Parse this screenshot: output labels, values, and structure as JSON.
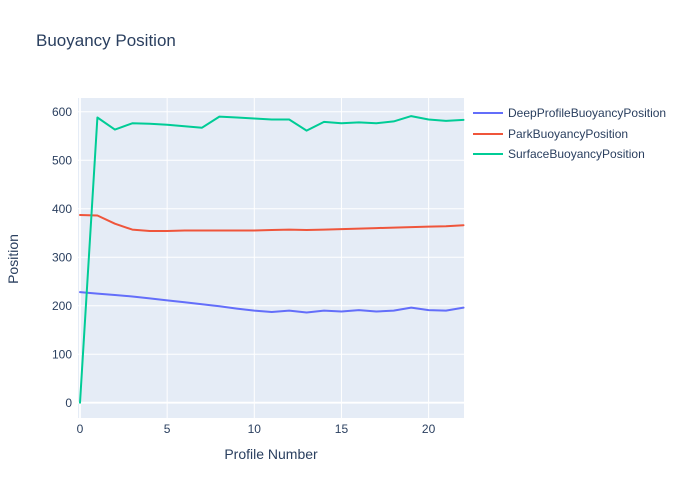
{
  "chart_data": {
    "type": "line",
    "title": "Buoyancy Position",
    "xlabel": "Profile Number",
    "ylabel": "Position",
    "x_ticks": [
      0,
      5,
      10,
      15,
      20
    ],
    "y_ticks": [
      0,
      100,
      200,
      300,
      400,
      500,
      600
    ],
    "xlim": [
      0,
      22
    ],
    "ylim": [
      -33,
      630
    ],
    "grid": true,
    "legend_position": "right",
    "x": [
      0,
      1,
      2,
      3,
      4,
      5,
      6,
      7,
      8,
      9,
      10,
      11,
      12,
      13,
      14,
      15,
      16,
      17,
      18,
      19,
      20,
      21,
      22
    ],
    "series": [
      {
        "name": "DeepProfileBuoyancyPosition",
        "color": "#636EFA",
        "values": [
          228,
          225,
          222,
          219,
          215,
          211,
          207,
          203,
          199,
          194,
          190,
          187,
          190,
          186,
          190,
          188,
          191,
          188,
          190,
          196,
          191,
          190,
          196
        ]
      },
      {
        "name": "ParkBuoyancyPosition",
        "color": "#EF553B",
        "values": [
          387,
          386,
          369,
          357,
          354,
          354,
          355,
          355,
          355,
          355,
          355,
          356,
          357,
          356,
          357,
          358,
          359,
          360,
          361,
          362,
          363,
          364,
          366
        ]
      },
      {
        "name": "SurfaceBuoyancyPosition",
        "color": "#00CC96",
        "values": [
          0,
          588,
          563,
          576,
          575,
          573,
          570,
          567,
          590,
          588,
          586,
          584,
          584,
          561,
          579,
          576,
          578,
          576,
          580,
          591,
          584,
          581,
          583
        ]
      }
    ]
  },
  "colors": {
    "plot_bg": "#E5ECF6",
    "grid": "#FFFFFF",
    "text": "#2a3f5f",
    "page_bg": "#FFFFFF"
  }
}
